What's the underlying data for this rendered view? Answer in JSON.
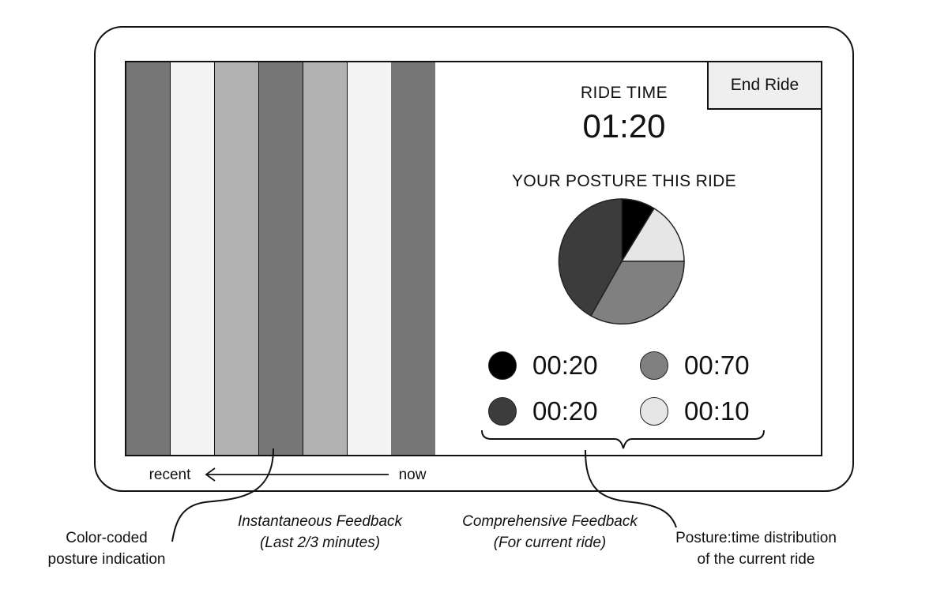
{
  "bar_colors": [
    "#767676",
    "#f4f4f4",
    "#b2b2b2",
    "#767676",
    "#b2b2b2",
    "#f4f4f4",
    "#767676"
  ],
  "screen": {
    "end_ride_label": "End Ride",
    "ride_time_label": "RIDE TIME",
    "ride_time_value": "01:20",
    "posture_title": "YOUR POSTURE THIS RIDE"
  },
  "legend": [
    {
      "color": "#000000",
      "time": "00:20"
    },
    {
      "color": "#808080",
      "time": "00:70"
    },
    {
      "color": "#3c3c3c",
      "time": "00:20"
    },
    {
      "color": "#e6e6e6",
      "time": "00:10"
    }
  ],
  "timeline": {
    "recent": "recent",
    "now": "now"
  },
  "annotations": {
    "color_coded": "Color-coded\nposture indication",
    "instantaneous": "Instantaneous Feedback\n(Last 2/3 minutes)",
    "comprehensive": "Comprehensive Feedback\n(For current ride)",
    "distribution": "Posture:time distribution\nof the current ride"
  }
}
